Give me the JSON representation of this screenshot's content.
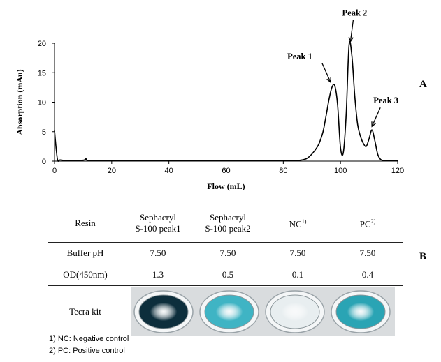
{
  "panel_labels": {
    "a": "A",
    "b": "B"
  },
  "chart_data": {
    "type": "line",
    "xlabel": "Flow (mL)",
    "ylabel": "Absorption (mAu)",
    "xlim": [
      0,
      120
    ],
    "ylim": [
      0,
      20
    ],
    "xticks": [
      0,
      20,
      40,
      60,
      80,
      100,
      120
    ],
    "yticks": [
      0,
      5,
      10,
      15,
      20
    ],
    "grid": false,
    "series": [
      {
        "x": [
          0,
          1,
          2,
          5,
          10,
          11,
          12,
          20,
          40,
          60,
          80,
          85,
          88,
          90,
          92,
          93,
          94,
          95,
          96,
          97,
          98,
          99,
          100,
          101,
          102,
          103,
          104,
          105,
          106,
          107,
          108,
          109,
          110,
          111,
          112,
          113,
          114,
          115,
          116,
          120
        ],
        "y": [
          5.2,
          0.4,
          0.2,
          0.1,
          0.15,
          0.4,
          0.1,
          0.05,
          0.05,
          0.05,
          0.05,
          0.1,
          0.4,
          1.2,
          2.5,
          3.6,
          5.2,
          7.8,
          10.5,
          12.5,
          12.8,
          9.5,
          2.3,
          1.5,
          8.0,
          19.7,
          17.8,
          11.0,
          6.2,
          4.2,
          3.0,
          2.5,
          3.8,
          5.3,
          3.5,
          1.2,
          0.3,
          0.1,
          0.05,
          0.05
        ]
      }
    ],
    "annotations": [
      {
        "text": "Peak 1",
        "x": 98,
        "y": 12.8
      },
      {
        "text": "Peak 2",
        "x": 103,
        "y": 19.7
      },
      {
        "text": "Peak 3",
        "x": 111,
        "y": 5.3
      }
    ]
  },
  "table": {
    "header": {
      "resin": "Resin",
      "c1_line1": "Sephacryl",
      "c1_line2": "S-100 peak1",
      "c2_line1": "Sephacryl",
      "c2_line2": "S-100 peak2",
      "c3": "NC",
      "c3_sup": "1)",
      "c4": "PC",
      "c4_sup": "2)"
    },
    "buffer_row": {
      "label": "Buffer pH",
      "values": [
        "7.50",
        "7.50",
        "7.50",
        "7.50"
      ]
    },
    "od_row": {
      "label": "OD(450nm)",
      "values": [
        "1.3",
        "0.5",
        "0.1",
        "0.4"
      ]
    },
    "kit_row": {
      "label": "Tecra kit"
    },
    "well_colors": [
      "#0d2e3c",
      "#3fb4c4",
      "#e8eef0",
      "#2aa4b4"
    ]
  },
  "notes": [
    "1) NC: Negative control",
    "2) PC: Positive control"
  ]
}
